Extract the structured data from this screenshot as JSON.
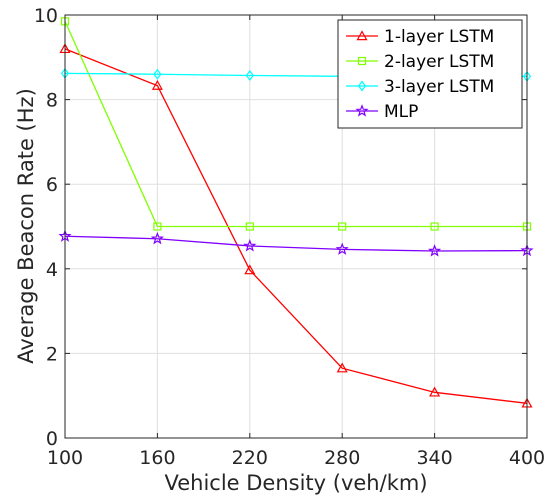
{
  "chart_data": {
    "type": "line",
    "title": "",
    "xlabel": "Vehicle Density (veh/km)",
    "ylabel": "Average Beacon Rate (Hz)",
    "x": [
      100,
      160,
      220,
      280,
      340,
      400
    ],
    "xticks": [
      100,
      160,
      220,
      280,
      340,
      400
    ],
    "yticks": [
      0,
      2,
      4,
      6,
      8,
      10
    ],
    "xlim": [
      100,
      400
    ],
    "ylim": [
      0,
      10
    ],
    "grid": true,
    "legend_position": "top-right",
    "series": [
      {
        "name": "1-layer LSTM",
        "color": "#ff0000",
        "marker": "triangle",
        "values": [
          9.2,
          8.33,
          3.97,
          1.65,
          1.08,
          0.82
        ]
      },
      {
        "name": "2-layer LSTM",
        "color": "#7fff00",
        "marker": "square",
        "values": [
          9.85,
          5.0,
          5.0,
          5.0,
          5.0,
          5.0
        ]
      },
      {
        "name": "3-layer LSTM",
        "color": "#00ffff",
        "marker": "diamond",
        "values": [
          8.62,
          8.6,
          8.57,
          8.55,
          8.55,
          8.55
        ]
      },
      {
        "name": "MLP",
        "color": "#8000ff",
        "marker": "star",
        "values": [
          4.77,
          4.71,
          4.54,
          4.46,
          4.42,
          4.43
        ]
      }
    ]
  }
}
